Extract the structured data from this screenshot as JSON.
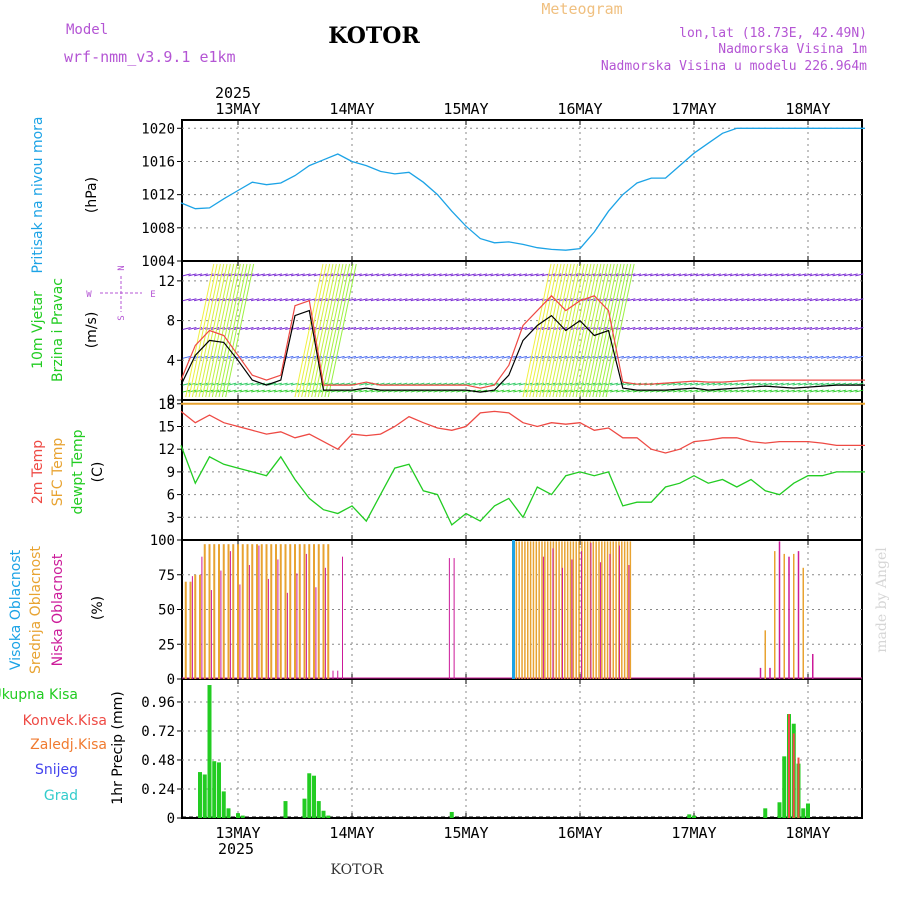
{
  "header": {
    "model_label": "Model",
    "model_name": "wrf-nmm_v3.9.1 e1km",
    "city": "KOTOR",
    "meteogram": "Meteogram",
    "lonlat": "lon,lat (18.73E, 42.49N)",
    "altitude": "Nadmorska Visina 1m",
    "model_altitude": "Nadmorska Visina u modelu 226.964m"
  },
  "footer": {
    "city": "KOTOR",
    "credit": "made by Angel"
  },
  "colors": {
    "pressure": "#1ca3e6",
    "temp2m": "#ee4a44",
    "sfc": "#e8a331",
    "dewpt": "#22cc22",
    "high_cloud": "#1ca3e6",
    "mid_cloud": "#e8a331",
    "low_cloud": "#cc1a99",
    "total_precip": "#22cc22",
    "convective": "#ee4a44",
    "frozen": "#f07b30",
    "snow": "#4444ee",
    "hail": "#33cccc",
    "title_purple": "#b455d4",
    "meteogram": "#f0c080"
  },
  "time_axis": {
    "top_year": "2025",
    "bottom_year": "2025",
    "day_labels": [
      "13MAY",
      "14MAY",
      "15MAY",
      "16MAY",
      "17MAY",
      "18MAY"
    ]
  },
  "chart_data": [
    {
      "type": "line",
      "id": "pressure",
      "ylabel": "(hPa)",
      "side_label": "Pritisak na nivou mora",
      "yticks": [
        "1004",
        "1008",
        "1012",
        "1016",
        "1020"
      ],
      "ylim": [
        1004,
        1021
      ],
      "x": [
        0,
        3,
        6,
        9,
        12,
        15,
        18,
        21,
        24,
        27,
        30,
        33,
        36,
        39,
        42,
        45,
        48,
        51,
        54,
        57,
        60,
        63,
        66,
        69,
        72,
        75,
        78,
        81,
        84,
        87,
        90,
        93,
        96,
        99,
        102,
        105,
        108,
        111,
        114,
        117,
        120,
        123,
        126,
        129,
        132,
        135,
        138,
        141,
        144
      ],
      "series": [
        {
          "values": [
            1011.0,
            1010.3,
            1010.4,
            1011.5,
            1012.5,
            1013.5,
            1013.2,
            1013.4,
            1014.3,
            1015.5,
            1016.2,
            1016.9,
            1016.0,
            1015.5,
            1014.8,
            1014.5,
            1014.7,
            1013.5,
            1012.0,
            1010.0,
            1008.2,
            1006.7,
            1006.2,
            1006.3,
            1006.0,
            1005.6,
            1005.4,
            1005.3,
            1005.5,
            1007.5,
            1010.0,
            1012.0,
            1013.4,
            1014.0,
            1014.0,
            1015.5,
            1017.0,
            1018.2,
            1019.4,
            1020.0,
            1020.0,
            1020.0,
            1020.0,
            1020.0,
            1020.0,
            1020.0,
            1020.0,
            1020.0,
            1020.0
          ]
        }
      ]
    },
    {
      "type": "line",
      "id": "wind",
      "ylabel": "(m/s)",
      "side_label": [
        "10m Vjetar",
        "Brzina i Pravac"
      ],
      "compass_label": [
        "N",
        "S",
        "W",
        "E"
      ],
      "yticks": [
        "0",
        "4",
        "8",
        "12"
      ],
      "ylim": [
        0,
        14
      ],
      "x": [
        0,
        3,
        6,
        9,
        12,
        15,
        18,
        21,
        24,
        27,
        30,
        33,
        36,
        39,
        42,
        45,
        48,
        51,
        54,
        57,
        60,
        63,
        66,
        69,
        72,
        75,
        78,
        81,
        84,
        87,
        90,
        93,
        96,
        99,
        102,
        105,
        108,
        111,
        114,
        117,
        120,
        123,
        126,
        129,
        132,
        135,
        138,
        141,
        144
      ],
      "series": [
        {
          "values": [
            1.5,
            4.5,
            6.0,
            5.8,
            4.0,
            2.0,
            1.5,
            2.0,
            8.5,
            9.0,
            1.0,
            1.0,
            1.0,
            1.2,
            1.0,
            1.0,
            1.0,
            1.0,
            1.0,
            1.0,
            1.0,
            0.8,
            1.0,
            2.5,
            6.0,
            7.5,
            8.5,
            7.0,
            8.0,
            6.5,
            7.0,
            1.2,
            1.0,
            1.0,
            1.0,
            1.1,
            1.2,
            1.0,
            1.1,
            1.2,
            1.3,
            1.4,
            1.3,
            1.2,
            1.3,
            1.4,
            1.5,
            1.5,
            1.5
          ]
        },
        {
          "values": [
            2.0,
            5.5,
            7.0,
            6.5,
            4.5,
            2.5,
            2.0,
            2.5,
            9.5,
            10.0,
            1.5,
            1.5,
            1.5,
            1.8,
            1.5,
            1.5,
            1.5,
            1.5,
            1.5,
            1.5,
            1.5,
            1.2,
            1.5,
            3.5,
            7.5,
            9.0,
            10.5,
            9.0,
            10.0,
            10.5,
            9.0,
            1.8,
            1.6,
            1.6,
            1.7,
            1.8,
            1.9,
            1.8,
            1.8,
            1.9,
            2.0,
            2.0,
            2.0,
            2.0,
            2.0,
            2.0,
            2.0,
            2.0,
            2.0
          ]
        }
      ]
    },
    {
      "type": "line",
      "id": "temperature",
      "ylabel": "(C)",
      "side_label": [
        "2m Temp",
        "SFC Temp",
        "dewpt Temp"
      ],
      "yticks": [
        "3",
        "6",
        "9",
        "12",
        "15",
        "18"
      ],
      "ylim": [
        0,
        18.5
      ],
      "x": [
        0,
        3,
        6,
        9,
        12,
        15,
        18,
        21,
        24,
        27,
        30,
        33,
        36,
        39,
        42,
        45,
        48,
        51,
        54,
        57,
        60,
        63,
        66,
        69,
        72,
        75,
        78,
        81,
        84,
        87,
        90,
        93,
        96,
        99,
        102,
        105,
        108,
        111,
        114,
        117,
        120,
        123,
        126,
        129,
        132,
        135,
        138,
        141,
        144
      ],
      "series": [
        {
          "values": [
            17.0,
            15.5,
            16.5,
            15.5,
            15.0,
            14.5,
            14.0,
            14.3,
            13.5,
            14.0,
            13.0,
            12.0,
            14.0,
            13.8,
            14.0,
            15.0,
            16.3,
            15.5,
            14.8,
            14.5,
            15.0,
            16.8,
            17.0,
            16.8,
            15.5,
            15.0,
            15.5,
            15.3,
            15.5,
            14.5,
            14.8,
            13.5,
            13.5,
            12.0,
            11.5,
            12.0,
            13.0,
            13.2,
            13.5,
            13.5,
            13.0,
            12.8,
            13.0,
            13.0,
            13.0,
            12.8,
            12.5,
            12.5,
            12.5
          ]
        },
        {
          "values": [
            18.0,
            18.0,
            18.0,
            18.0,
            18.0,
            18.0,
            18.0,
            18.0,
            18.0,
            18.0,
            18.0,
            18.0,
            18.0,
            18.0,
            18.0,
            18.0,
            18.0,
            18.0,
            18.0,
            18.0,
            18.0,
            18.0,
            18.0,
            18.0,
            18.0,
            18.0,
            18.0,
            18.0,
            18.0,
            18.0,
            18.0,
            18.0,
            18.0,
            18.0,
            18.0,
            18.0,
            18.0,
            18.0,
            18.0,
            18.0,
            18.0,
            18.0,
            18.0,
            18.0,
            18.0,
            18.0,
            18.0,
            18.0,
            18.0
          ]
        },
        {
          "values": [
            12.5,
            7.5,
            11.0,
            10.0,
            9.5,
            9.0,
            8.5,
            11.0,
            8.0,
            5.5,
            4.0,
            3.5,
            4.5,
            2.5,
            6.0,
            9.5,
            10.0,
            6.5,
            6.0,
            2.0,
            3.5,
            2.5,
            4.5,
            5.5,
            3.0,
            7.0,
            6.0,
            8.5,
            9.0,
            8.5,
            9.0,
            4.5,
            5.0,
            5.0,
            7.0,
            7.5,
            8.5,
            7.5,
            8.0,
            7.0,
            8.0,
            6.5,
            6.0,
            7.5,
            8.5,
            8.5,
            9.0,
            9.0,
            9.0
          ]
        }
      ]
    },
    {
      "type": "bar",
      "id": "clouds",
      "ylabel": "(%)",
      "side_label": [
        "Visoka Oblacnost",
        "Srednja Oblacnost",
        "Niska Oblacnost"
      ],
      "yticks": [
        "0",
        "25",
        "50",
        "75",
        "100"
      ],
      "ylim": [
        0,
        100
      ]
    },
    {
      "type": "bar",
      "id": "precip",
      "ylabel": "1hr Precip (mm)",
      "side_label": [
        "Ukupna Kisa",
        "Konvek.Kisa",
        "Zaledj.Kisa",
        "Snijeg",
        "Grad"
      ],
      "yticks": [
        "0",
        "0.24",
        "0.48",
        "0.72",
        "0.96"
      ],
      "ylim": [
        0,
        1.15
      ],
      "x": [
        4,
        5,
        6,
        7,
        8,
        9,
        10,
        12,
        13,
        22,
        26,
        27,
        28,
        29,
        30,
        31,
        57,
        107,
        108,
        123,
        126,
        127,
        128,
        129,
        130,
        131,
        132
      ],
      "series": [
        {
          "values": [
            0.38,
            0.36,
            1.1,
            0.47,
            0.46,
            0.22,
            0.08,
            0.04,
            0.02,
            0.14,
            0.16,
            0.37,
            0.35,
            0.14,
            0.06,
            0.02,
            0.05,
            0.03,
            0.02,
            0.08,
            0.13,
            0.51,
            0.86,
            0.78,
            0.45,
            0.08,
            0.12
          ]
        }
      ]
    }
  ]
}
